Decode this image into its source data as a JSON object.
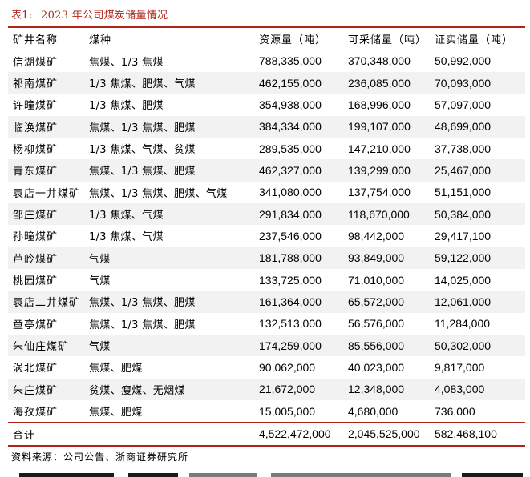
{
  "caption": {
    "label": "表1:",
    "title": "2023 年公司煤炭储量情况"
  },
  "table": {
    "headers": [
      "矿井名称",
      "煤种",
      "资源量（吨）",
      "可采储量（吨）",
      "证实储量（吨）"
    ],
    "rows": [
      [
        "信湖煤矿",
        "焦煤、1/3 焦煤",
        "788,335,000",
        "370,348,000",
        "50,992,000"
      ],
      [
        "祁南煤矿",
        "1/3 焦煤、肥煤、气煤",
        "462,155,000",
        "236,085,000",
        "70,093,000"
      ],
      [
        "许疃煤矿",
        "1/3 焦煤、肥煤",
        "354,938,000",
        "168,996,000",
        "57,097,000"
      ],
      [
        "临涣煤矿",
        "焦煤、1/3 焦煤、肥煤",
        "384,334,000",
        "199,107,000",
        "48,699,000"
      ],
      [
        "杨柳煤矿",
        "1/3 焦煤、气煤、贫煤",
        "289,535,000",
        "147,210,000",
        "37,738,000"
      ],
      [
        "青东煤矿",
        "焦煤、1/3 焦煤、肥煤",
        "462,327,000",
        "139,299,000",
        "25,467,000"
      ],
      [
        "袁店一井煤矿",
        "焦煤、1/3 焦煤、肥煤、气煤",
        "341,080,000",
        "137,754,000",
        "51,151,000"
      ],
      [
        "邹庄煤矿",
        "1/3 焦煤、气煤",
        "291,834,000",
        "118,670,000",
        "50,384,000"
      ],
      [
        "孙疃煤矿",
        "1/3 焦煤、气煤",
        "237,546,000",
        "98,442,000",
        "29,417,100"
      ],
      [
        "芦岭煤矿",
        "气煤",
        "181,788,000",
        "93,849,000",
        "59,122,000"
      ],
      [
        "桃园煤矿",
        "气煤",
        "133,725,000",
        "71,010,000",
        "14,025,000"
      ],
      [
        "袁店二井煤矿",
        "焦煤、1/3 焦煤、肥煤",
        "161,364,000",
        "65,572,000",
        "12,061,000"
      ],
      [
        "童亭煤矿",
        "焦煤、1/3 焦煤、肥煤",
        "132,513,000",
        "56,576,000",
        "11,284,000"
      ],
      [
        "朱仙庄煤矿",
        "气煤",
        "174,259,000",
        "85,556,000",
        "50,302,000"
      ],
      [
        "涡北煤矿",
        "焦煤、肥煤",
        "90,062,000",
        "40,023,000",
        "9,817,000"
      ],
      [
        "朱庄煤矿",
        "贫煤、瘦煤、无烟煤",
        "21,672,000",
        "12,348,000",
        "4,083,000"
      ],
      [
        "海孜煤矿",
        "焦煤、肥煤",
        "15,005,000",
        "4,680,000",
        "736,000"
      ]
    ],
    "total": [
      "合计",
      "",
      "4,522,472,000",
      "2,045,525,000",
      "582,468,100"
    ]
  },
  "source": "资料来源：公司公告、浙商证券研究所",
  "colors": {
    "accent": "#b02418",
    "row_shade": "#f2f2f2"
  }
}
